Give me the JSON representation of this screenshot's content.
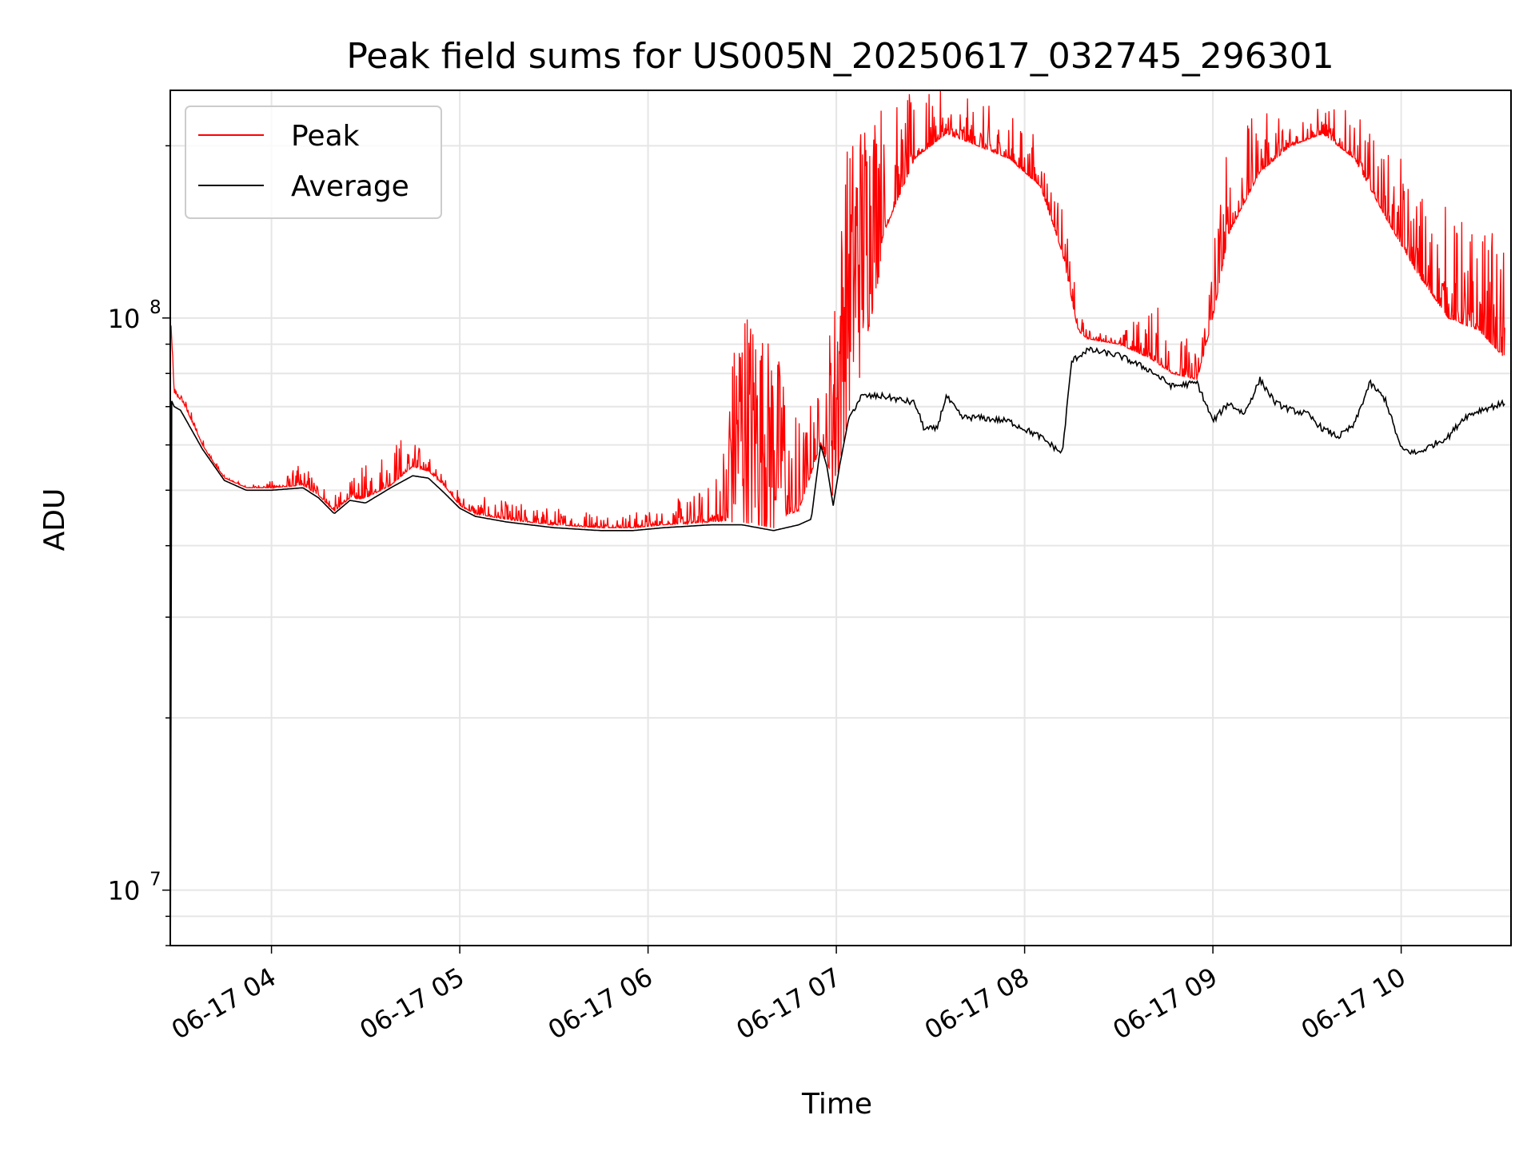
{
  "chart_data": {
    "type": "line",
    "title": "Peak field sums for US005N_20250617_032745_296301",
    "xlabel": "Time",
    "ylabel": "ADU",
    "yscale": "log",
    "ylim": [
      8000000,
      250000000
    ],
    "xlim": [
      "2025-06-17 03:27:45",
      "2025-06-17 10:35"
    ],
    "x_tick_labels": [
      "06-17 04",
      "06-17 05",
      "06-17 06",
      "06-17 07",
      "06-17 08",
      "06-17 09",
      "06-17 10"
    ],
    "x_ticks": [
      "2025-06-17 04:00",
      "2025-06-17 05:00",
      "2025-06-17 06:00",
      "2025-06-17 07:00",
      "2025-06-17 08:00",
      "2025-06-17 09:00",
      "2025-06-17 10:00"
    ],
    "y_major_ticks": [
      10000000,
      100000000
    ],
    "y_tick_labels": [
      {
        "base": "10",
        "exp": "7"
      },
      {
        "base": "10",
        "exp": "8"
      }
    ],
    "grid": true,
    "legend_position": "upper-left",
    "series": [
      {
        "name": "Peak",
        "color": "#ff0000",
        "style": "noisy-envelope",
        "x": [
          "03:28",
          "03:29",
          "03:32",
          "03:38",
          "03:45",
          "03:52",
          "04:00",
          "04:10",
          "04:15",
          "04:20",
          "04:25",
          "04:30",
          "04:38",
          "04:45",
          "04:50",
          "04:55",
          "05:00",
          "05:05",
          "05:15",
          "05:30",
          "05:45",
          "05:55",
          "06:05",
          "06:20",
          "06:30",
          "06:40",
          "06:48",
          "06:55",
          "06:57",
          "07:00",
          "07:03",
          "07:08",
          "07:15",
          "07:25",
          "07:35",
          "07:45",
          "07:55",
          "08:05",
          "08:12",
          "08:17",
          "08:20",
          "08:30",
          "08:40",
          "08:47",
          "08:55",
          "09:00",
          "09:05",
          "09:15",
          "09:25",
          "09:35",
          "09:45",
          "09:55",
          "10:05",
          "10:15",
          "10:25",
          "10:33"
        ],
        "y": [
          97000000,
          74000000,
          71000000,
          60000000,
          52000000,
          50000000,
          50500000,
          51000000,
          49000000,
          46000000,
          48000000,
          48500000,
          51000000,
          55000000,
          54000000,
          51000000,
          47000000,
          45000000,
          44000000,
          43500000,
          43000000,
          43000000,
          43500000,
          44000000,
          44500000,
          44500000,
          46000000,
          60000000,
          56000000,
          50000000,
          70000000,
          90000000,
          140000000,
          190000000,
          210000000,
          200000000,
          190000000,
          170000000,
          130000000,
          95000000,
          92000000,
          90000000,
          85000000,
          80000000,
          78000000,
          100000000,
          140000000,
          180000000,
          200000000,
          210000000,
          190000000,
          150000000,
          120000000,
          100000000,
          95000000,
          85000000
        ],
        "y_high": [
          97000000,
          77000000,
          74000000,
          62000000,
          53000000,
          51000000,
          52000000,
          56000000,
          54000000,
          49000000,
          52000000,
          56000000,
          65000000,
          62000000,
          58000000,
          53000000,
          50000000,
          49000000,
          48000000,
          47000000,
          47000000,
          46000000,
          47000000,
          52000000,
          110000000,
          90000000,
          72000000,
          78000000,
          90000000,
          115000000,
          200000000,
          230000000,
          240000000,
          250000000,
          250000000,
          240000000,
          230000000,
          210000000,
          160000000,
          105000000,
          96000000,
          93000000,
          110000000,
          100000000,
          90000000,
          170000000,
          210000000,
          230000000,
          235000000,
          235000000,
          230000000,
          200000000,
          180000000,
          160000000,
          150000000,
          140000000
        ]
      },
      {
        "name": "Average",
        "color": "#000000",
        "x": [
          "03:27.8",
          "03:28",
          "03:29",
          "03:31",
          "03:33",
          "03:38",
          "03:45",
          "03:52",
          "04:00",
          "04:10",
          "04:15",
          "04:20",
          "04:25",
          "04:30",
          "04:38",
          "04:45",
          "04:50",
          "04:55",
          "05:00",
          "05:05",
          "05:15",
          "05:30",
          "05:45",
          "05:55",
          "06:05",
          "06:20",
          "06:30",
          "06:40",
          "06:48",
          "06:52",
          "06:55",
          "06:57",
          "06:59",
          "07:01",
          "07:04",
          "07:08",
          "07:15",
          "07:25",
          "07:28",
          "07:32",
          "07:35",
          "07:40",
          "07:45",
          "07:55",
          "08:05",
          "08:12",
          "08:15",
          "08:20",
          "08:30",
          "08:40",
          "08:47",
          "08:55",
          "09:00",
          "09:05",
          "09:10",
          "09:15",
          "09:20",
          "09:25",
          "09:30",
          "09:35",
          "09:40",
          "09:45",
          "09:50",
          "09:55",
          "10:00",
          "10:05",
          "10:10",
          "10:15",
          "10:20",
          "10:25",
          "10:33"
        ],
        "y": [
          8500000,
          72000000,
          70000000,
          69000000,
          66000000,
          59000000,
          52000000,
          50000000,
          50000000,
          50500000,
          48500000,
          45500000,
          48000000,
          47500000,
          50500000,
          53000000,
          52500000,
          49500000,
          46500000,
          45000000,
          44000000,
          43000000,
          42500000,
          42500000,
          43000000,
          43500000,
          43500000,
          42500000,
          43500000,
          44500000,
          60000000,
          55000000,
          47000000,
          55000000,
          67000000,
          73000000,
          73000000,
          71000000,
          64000000,
          64000000,
          73000000,
          67000000,
          67000000,
          66000000,
          62000000,
          58000000,
          84000000,
          88000000,
          86000000,
          81000000,
          76000000,
          77000000,
          66000000,
          71000000,
          68000000,
          78000000,
          71000000,
          69000000,
          68000000,
          64000000,
          62000000,
          65000000,
          77000000,
          72000000,
          59000000,
          58000000,
          60000000,
          62000000,
          67000000,
          69000000,
          71000000
        ]
      }
    ]
  }
}
